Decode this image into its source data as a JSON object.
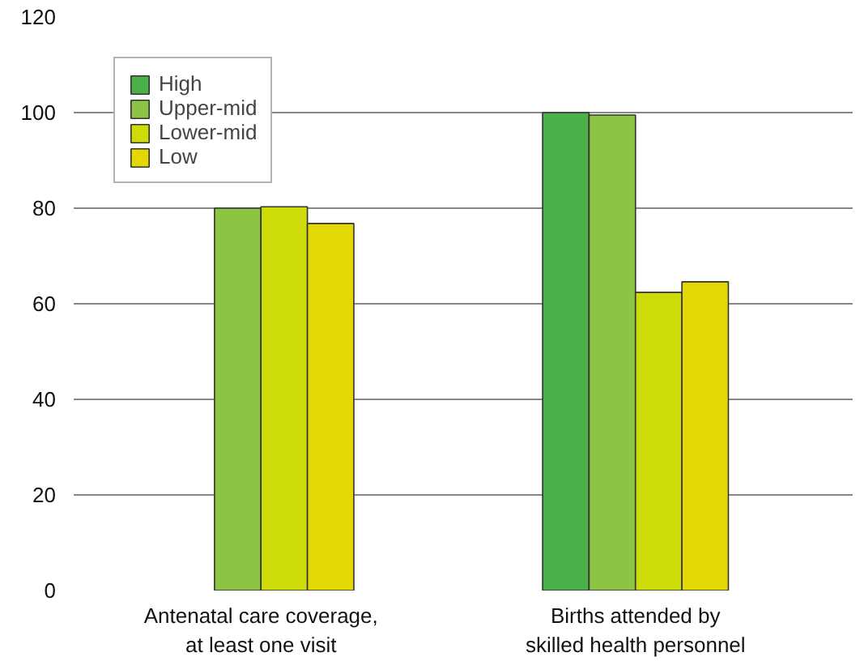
{
  "chart_data": {
    "type": "bar",
    "categories": [
      "Antenatal care coverage,\nat least one visit",
      "Births attended by\nskilled health personnel"
    ],
    "series": [
      {
        "name": "High",
        "color": "#4cb04a",
        "values": [
          null,
          100
        ]
      },
      {
        "name": "Upper-mid",
        "color": "#8dc443",
        "values": [
          80,
          99.5
        ]
      },
      {
        "name": "Lower-mid",
        "color": "#cddc08",
        "values": [
          80.3,
          62.4
        ]
      },
      {
        "name": "Low",
        "color": "#e3d706",
        "values": [
          76.8,
          64.6
        ]
      }
    ],
    "ylim": [
      0,
      120
    ],
    "yticks": [
      0,
      20,
      40,
      60,
      80,
      100,
      120
    ],
    "grid": "y",
    "legend": "top left"
  }
}
